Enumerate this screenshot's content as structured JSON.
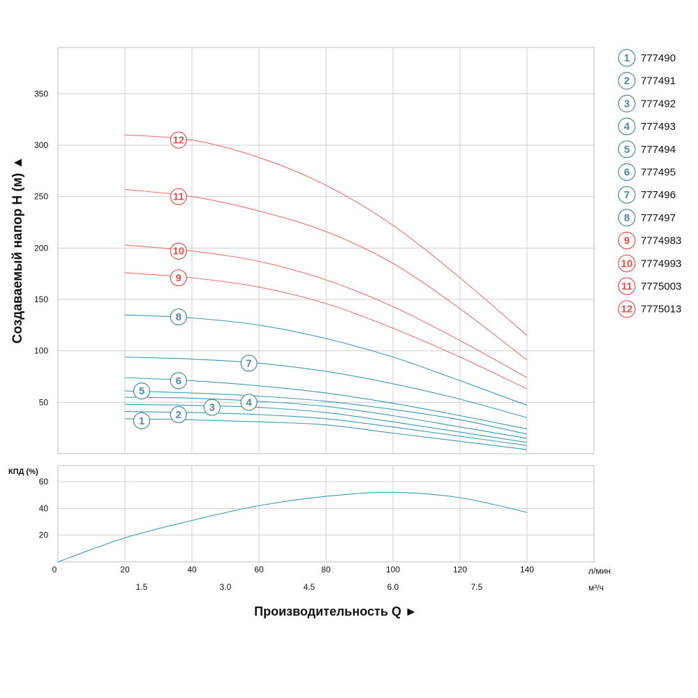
{
  "chart_data": [
    {
      "type": "line",
      "ylabel": "Создаваемый напор H (м) ▲",
      "xlabel": "Производительность Q ►",
      "x_unit_primary": "л/мин",
      "x_unit_secondary": "м³/ч",
      "xlim": [
        0,
        160
      ],
      "ylim": [
        0,
        395
      ],
      "yticks": [
        50,
        100,
        150,
        200,
        250,
        300,
        350
      ],
      "xticks_primary": [
        0,
        20,
        40,
        60,
        80,
        100,
        120,
        140
      ],
      "xticks_secondary": [
        {
          "x": 25,
          "label": "1.5"
        },
        {
          "x": 50,
          "label": "3.0"
        },
        {
          "x": 75,
          "label": "4.5"
        },
        {
          "x": 100,
          "label": "6.0"
        },
        {
          "x": 125,
          "label": "7.5"
        }
      ],
      "grid": true,
      "legend_position": "right",
      "series": [
        {
          "id": "1",
          "name": "777490",
          "color": "#3c9ab0",
          "label_color": "#4e8a9b",
          "label_at": 25,
          "label_h": 32,
          "points": [
            [
              20,
              34
            ],
            [
              40,
              33
            ],
            [
              60,
              31
            ],
            [
              80,
              28
            ],
            [
              100,
              20
            ],
            [
              120,
              12
            ],
            [
              140,
              4
            ]
          ]
        },
        {
          "id": "2",
          "name": "777491",
          "color": "#3c9ab0",
          "label_color": "#4e8a9b",
          "label_at": 36,
          "label_h": 38,
          "points": [
            [
              20,
              41
            ],
            [
              40,
              40
            ],
            [
              60,
              38
            ],
            [
              80,
              34
            ],
            [
              100,
              26
            ],
            [
              120,
              17
            ],
            [
              140,
              8
            ]
          ]
        },
        {
          "id": "3",
          "name": "777492",
          "color": "#3c9ab0",
          "label_color": "#4e8a9b",
          "label_at": 46,
          "label_h": 45,
          "points": [
            [
              20,
              48
            ],
            [
              40,
              47
            ],
            [
              60,
              45
            ],
            [
              80,
              40
            ],
            [
              100,
              31
            ],
            [
              120,
              21
            ],
            [
              140,
              11
            ]
          ]
        },
        {
          "id": "4",
          "name": "777493",
          "color": "#3c9ab0",
          "label_color": "#4e8a9b",
          "label_at": 57,
          "label_h": 50,
          "points": [
            [
              20,
              55
            ],
            [
              40,
              54
            ],
            [
              60,
              51
            ],
            [
              80,
              46
            ],
            [
              100,
              37
            ],
            [
              120,
              26
            ],
            [
              140,
              15
            ]
          ]
        },
        {
          "id": "5",
          "name": "777494",
          "color": "#3c9ab0",
          "label_color": "#4e8a9b",
          "label_at": 25,
          "label_h": 61,
          "points": [
            [
              20,
              61
            ],
            [
              40,
              59
            ],
            [
              60,
              56
            ],
            [
              80,
              51
            ],
            [
              100,
              43
            ],
            [
              120,
              33
            ],
            [
              140,
              19
            ]
          ]
        },
        {
          "id": "6",
          "name": "777495",
          "color": "#3c9ab0",
          "label_color": "#4e8a9b",
          "label_at": 36,
          "label_h": 71,
          "points": [
            [
              20,
              74
            ],
            [
              40,
              71
            ],
            [
              60,
              66
            ],
            [
              80,
              59
            ],
            [
              100,
              49
            ],
            [
              120,
              37
            ],
            [
              140,
              24
            ]
          ]
        },
        {
          "id": "7",
          "name": "777496",
          "color": "#3c9ab0",
          "label_color": "#4e8a9b",
          "label_at": 57,
          "label_h": 88,
          "points": [
            [
              20,
              94
            ],
            [
              40,
              92
            ],
            [
              60,
              88
            ],
            [
              80,
              80
            ],
            [
              100,
              68
            ],
            [
              120,
              53
            ],
            [
              140,
              35
            ]
          ]
        },
        {
          "id": "8",
          "name": "777497",
          "color": "#3c9ab0",
          "label_color": "#4e8a9b",
          "label_at": 36,
          "label_h": 133,
          "points": [
            [
              20,
              135
            ],
            [
              40,
              132
            ],
            [
              60,
              125
            ],
            [
              80,
              112
            ],
            [
              100,
              94
            ],
            [
              120,
              71
            ],
            [
              140,
              47
            ]
          ]
        },
        {
          "id": "9",
          "name": "7774983",
          "color": "#e8716f",
          "label_color": "#e8504f",
          "label_at": 36,
          "label_h": 171,
          "points": [
            [
              20,
              176
            ],
            [
              40,
              171
            ],
            [
              60,
              162
            ],
            [
              80,
              146
            ],
            [
              100,
              122
            ],
            [
              120,
              94
            ],
            [
              140,
              63
            ]
          ]
        },
        {
          "id": "10",
          "name": "7774993",
          "color": "#e8716f",
          "label_color": "#e8504f",
          "label_at": 36,
          "label_h": 197,
          "points": [
            [
              20,
              203
            ],
            [
              40,
              197
            ],
            [
              60,
              187
            ],
            [
              80,
              169
            ],
            [
              100,
              143
            ],
            [
              120,
              110
            ],
            [
              140,
              74
            ]
          ]
        },
        {
          "id": "11",
          "name": "7775003",
          "color": "#e8716f",
          "label_color": "#e8504f",
          "label_at": 36,
          "label_h": 250,
          "points": [
            [
              20,
              257
            ],
            [
              40,
              250
            ],
            [
              60,
              236
            ],
            [
              80,
              216
            ],
            [
              100,
              185
            ],
            [
              120,
              141
            ],
            [
              140,
              91
            ]
          ]
        },
        {
          "id": "12",
          "name": "7775013",
          "color": "#e8716f",
          "label_color": "#e8504f",
          "label_at": 36,
          "label_h": 305,
          "points": [
            [
              20,
              310
            ],
            [
              40,
              305
            ],
            [
              60,
              288
            ],
            [
              80,
              261
            ],
            [
              100,
              222
            ],
            [
              120,
              171
            ],
            [
              140,
              115
            ]
          ]
        }
      ]
    },
    {
      "type": "line",
      "ylabel": "КПД (%)",
      "xlim": [
        0,
        160
      ],
      "ylim": [
        0,
        72
      ],
      "yticks": [
        20,
        40,
        60
      ],
      "grid": true,
      "series": [
        {
          "name": "",
          "color": "#3c9ab0",
          "points": [
            [
              0,
              0
            ],
            [
              20,
              18
            ],
            [
              40,
              31
            ],
            [
              60,
              42
            ],
            [
              80,
              49
            ],
            [
              100,
              52
            ],
            [
              120,
              48
            ],
            [
              140,
              37
            ]
          ]
        }
      ]
    }
  ]
}
